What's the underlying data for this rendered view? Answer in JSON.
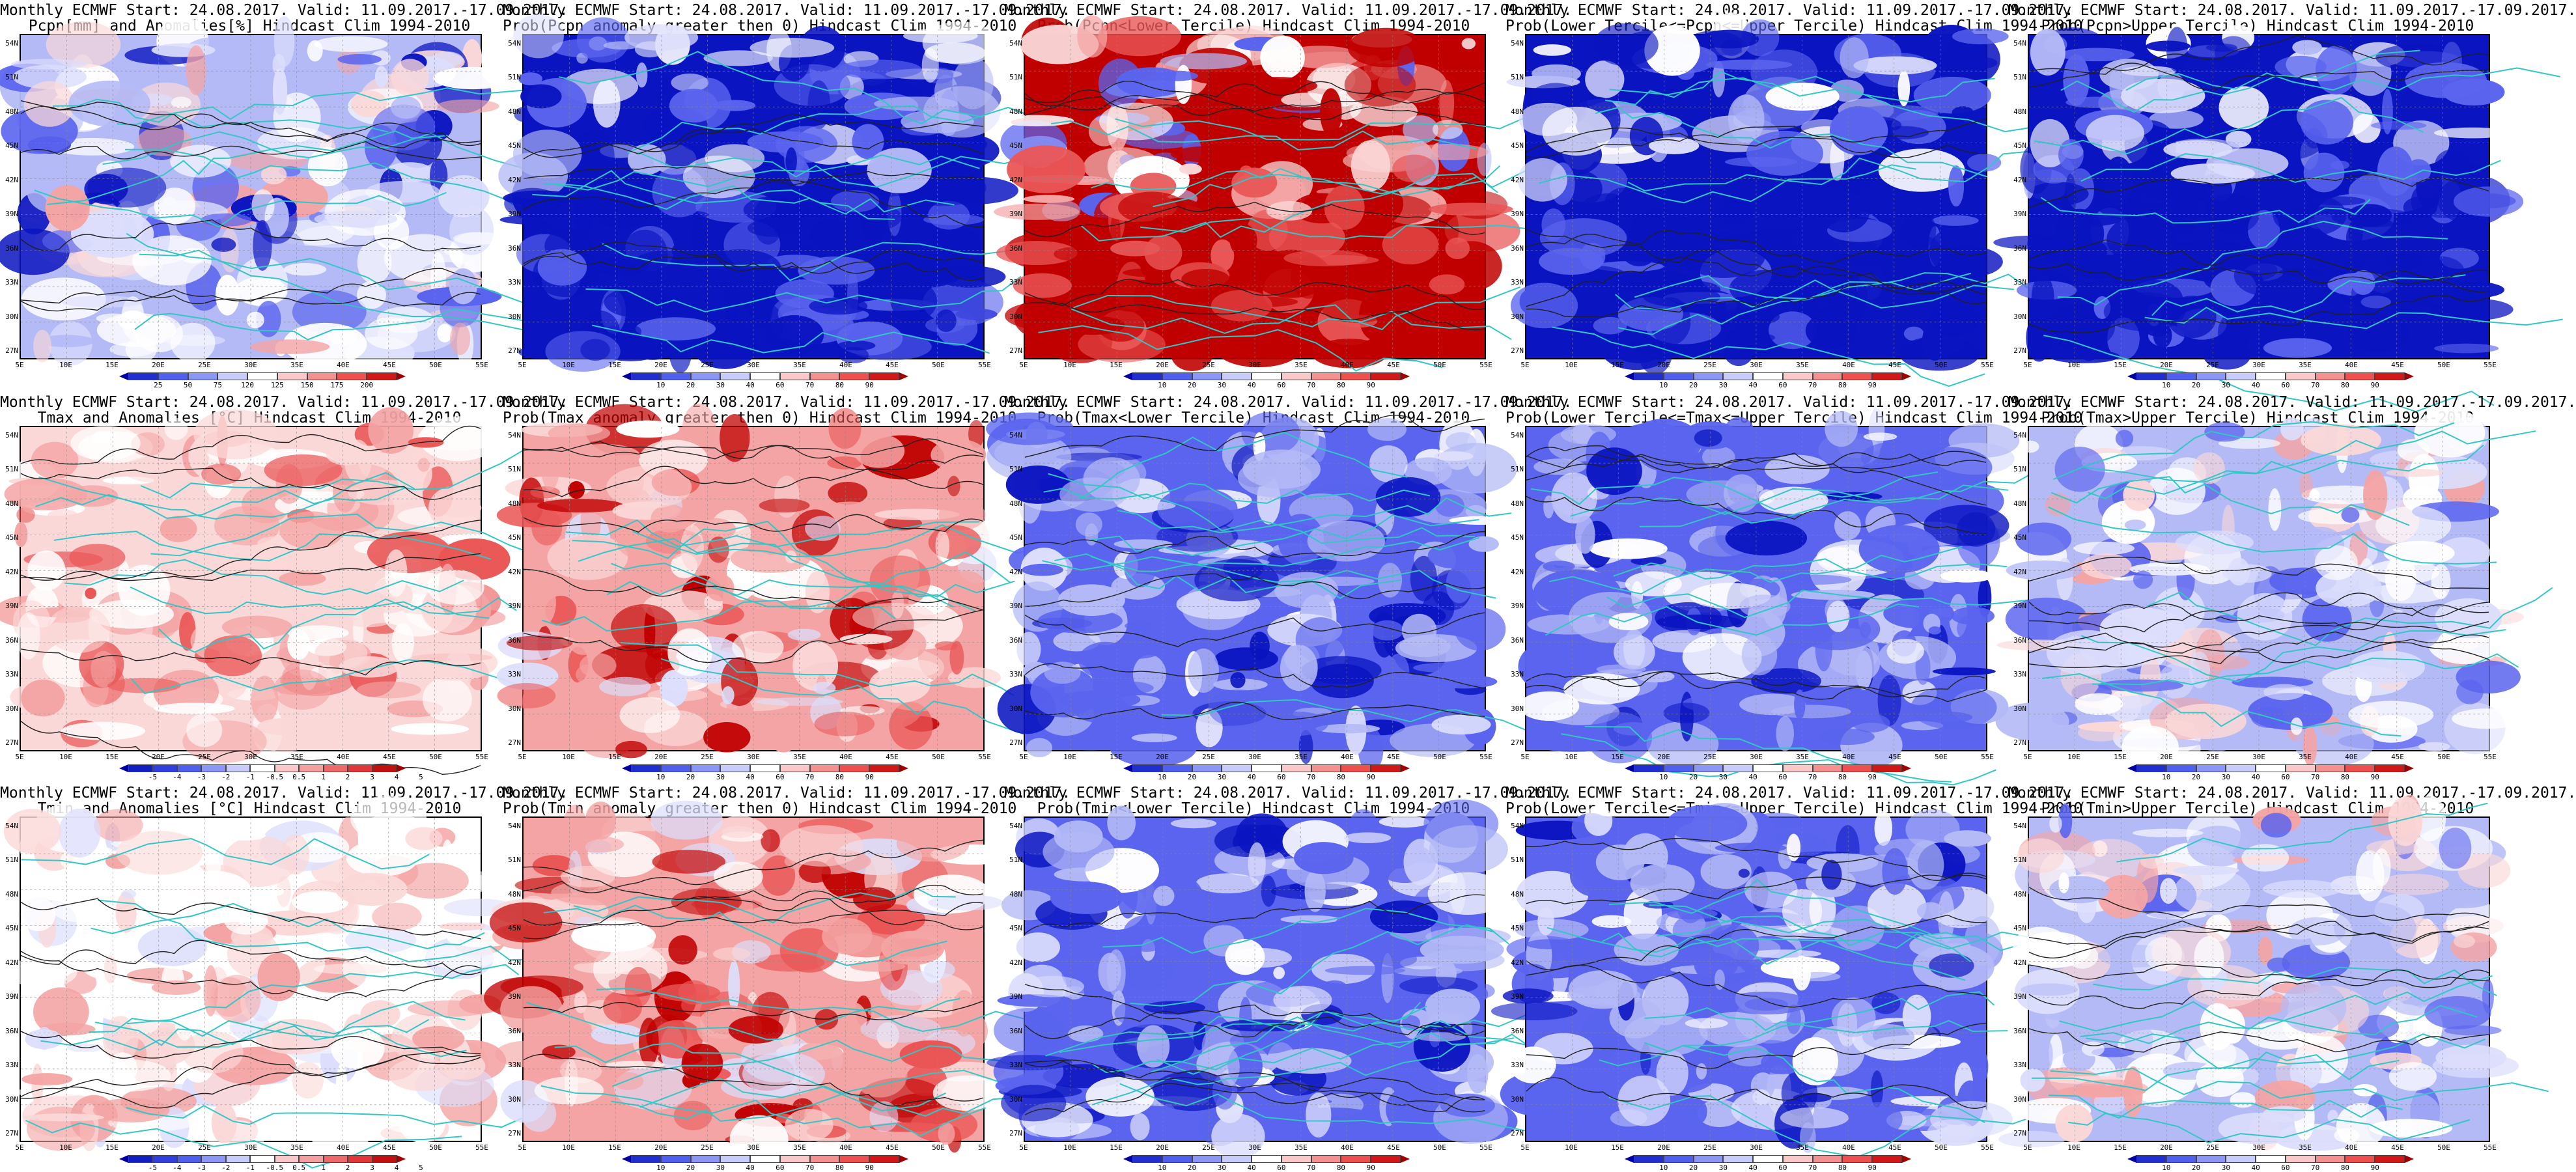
{
  "panels": [
    {
      "line1": "Monthly ECMWF Start: 24.08.2017. Valid: 11.09.2017.-17.09.2017.",
      "line2": "Pcpn[mm] and Anomalies[%]",
      "line2_suffix": " Hindcast Clim 1994-2010",
      "scheme": "pcpn_anom",
      "bar": "pct",
      "map": "pcpn_anom"
    },
    {
      "line1": "Monthly ECMWF Start: 24.08.2017. Valid: 11.09.2017.-17.09.2017.",
      "line2": "Prob(Pcpn anomaly greater then 0)",
      "line2_suffix": " Hindcast Clim 1994-2010",
      "scheme": "prob",
      "bar": "prob",
      "map": "blue_heavy"
    },
    {
      "line1": "Monthly ECMWF Start: 24.08.2017. Valid: 11.09.2017.-17.09.2017.",
      "line2": "Prob(Pcpn<Lower Tercile)",
      "line2_suffix": " Hindcast Clim 1994-2010",
      "scheme": "prob",
      "bar": "prob",
      "map": "red_south"
    },
    {
      "line1": "Monthly ECMWF Start: 24.08.2017. Valid: 11.09.2017.-17.09.2017.",
      "line2": "Prob(Lower Tercile<=Pcpn<=Upper Tercile)",
      "line2_suffix": " Hindcast Clim 1994-2010",
      "scheme": "prob",
      "bar": "prob",
      "map": "blue_heavy"
    },
    {
      "line1": "Monthly ECMWF Start: 24.08.2017. Valid: 11.09.2017.-17.09.2017.",
      "line2": "Prob(Pcpn>Upper Tercile)",
      "line2_suffix": " Hindcast Clim 1994-2010",
      "scheme": "prob",
      "bar": "prob",
      "map": "blue_heavy"
    },
    {
      "line1": "Monthly ECMWF Start: 24.08.2017. Valid: 11.09.2017.-17.09.2017.",
      "line2": "Tmax and Anomalies [°C]",
      "line2_suffix": " Hindcast Clim 1994-2010",
      "scheme": "temp",
      "bar": "temp",
      "map": "red_mild"
    },
    {
      "line1": "Monthly ECMWF Start: 24.08.2017. Valid: 11.09.2017.-17.09.2017.",
      "line2": "Prob(Tmax anomaly greater then 0)",
      "line2_suffix": " Hindcast Clim 1994-2010",
      "scheme": "prob",
      "bar": "prob",
      "map": "red_mid"
    },
    {
      "line1": "Monthly ECMWF Start: 24.08.2017. Valid: 11.09.2017.-17.09.2017.",
      "line2": "Prob(Tmax<Lower Tercile)",
      "line2_suffix": " Hindcast Clim 1994-2010",
      "scheme": "prob",
      "bar": "prob",
      "map": "blue_mid"
    },
    {
      "line1": "Monthly ECMWF Start: 24.08.2017. Valid: 11.09.2017.-17.09.2017.",
      "line2": "Prob(Lower Tercile<=Tmax<=Upper Tercile)",
      "line2_suffix": " Hindcast Clim 1994-2010",
      "scheme": "prob",
      "bar": "prob",
      "map": "blue_mid"
    },
    {
      "line1": "Monthly ECMWF Start: 24.08.2017. Valid: 11.09.2017.-17.09.2017.",
      "line2": "Prob(Tmax>Upper Tercile)",
      "line2_suffix": " Hindcast Clim 1994-2010",
      "scheme": "prob",
      "bar": "prob",
      "map": "mixed_light"
    },
    {
      "line1": "Monthly ECMWF Start: 24.08.2017. Valid: 11.09.2017.-17.09.2017.",
      "line2": "Tmin and Anomalies [°C]",
      "line2_suffix": " Hindcast Clim 1994-2010",
      "scheme": "temp",
      "bar": "temp",
      "map": "red_light"
    },
    {
      "line1": "Monthly ECMWF Start: 24.08.2017. Valid: 11.09.2017.-17.09.2017.",
      "line2": "Prob(Tmin anomaly greater then 0)",
      "line2_suffix": " Hindcast Clim 1994-2010",
      "scheme": "prob",
      "bar": "prob",
      "map": "red_mid"
    },
    {
      "line1": "Monthly ECMWF Start: 24.08.2017. Valid: 11.09.2017.-17.09.2017.",
      "line2": "Prob(Tmin<Lower Tercile)",
      "line2_suffix": " Hindcast Clim 1994-2010",
      "scheme": "prob",
      "bar": "prob",
      "map": "blue_mid"
    },
    {
      "line1": "Monthly ECMWF Start: 24.08.2017. Valid: 11.09.2017.-17.09.2017.",
      "line2": "Prob(Lower Tercile<=Tmin<=Upper Tercile)",
      "line2_suffix": " Hindcast Clim 1994-2010",
      "scheme": "prob",
      "bar": "prob",
      "map": "blue_mid"
    },
    {
      "line1": "Monthly ECMWF Start: 24.08.2017. Valid: 11.09.2017.-17.09.2017.",
      "line2": "Prob(Tmin>Upper Tercile)",
      "line2_suffix": " Hindcast Clim 1994-2010",
      "scheme": "prob",
      "bar": "prob",
      "map": "mixed_light"
    }
  ],
  "axes": {
    "lat_labels": [
      "54N",
      "51N",
      "48N",
      "45N",
      "42N",
      "39N",
      "36N",
      "33N",
      "30N",
      "27N"
    ],
    "lon_labels": [
      "5E",
      "10E",
      "15E",
      "20E",
      "25E",
      "30E",
      "35E",
      "40E",
      "45E",
      "50E",
      "55E"
    ]
  },
  "colorbars": {
    "pct": {
      "labels": [
        "25",
        "50",
        "75",
        "120",
        "125",
        "150",
        "175",
        "200"
      ],
      "colors": [
        "#0000a0",
        "#2030d0",
        "#5060ee",
        "#8c96f4",
        "#c8ccfa",
        "#ffffff",
        "#fac8c8",
        "#f49090",
        "#ee5050",
        "#d01818",
        "#a00000"
      ]
    },
    "prob": {
      "labels": [
        "10",
        "20",
        "30",
        "40",
        "60",
        "70",
        "80",
        "90"
      ],
      "colors": [
        "#0000a0",
        "#2030d0",
        "#5060ee",
        "#8c96f4",
        "#c8ccfa",
        "#ffffff",
        "#fac8c8",
        "#f49090",
        "#ee5050",
        "#d01818",
        "#a00000"
      ]
    },
    "temp": {
      "labels": [
        "-5",
        "-4",
        "-3",
        "-2",
        "-1",
        "-0.5",
        "0.5",
        "1",
        "2",
        "3",
        "4",
        "5"
      ],
      "colors": [
        "#0000a0",
        "#1020c0",
        "#3040dd",
        "#5060ee",
        "#8c96f4",
        "#c8ccfa",
        "#ffffff",
        "#fac8c8",
        "#f4a0a0",
        "#ee6a6a",
        "#e03838",
        "#c01010",
        "#a00000"
      ]
    }
  },
  "palette": {
    "deep_blue": "#0a14c0",
    "mid_blue": "#5a64ee",
    "light_blue": "#b4baf6",
    "pale_blue": "#dcdefc",
    "white": "#ffffff",
    "pale_red": "#fbd8d8",
    "light_red": "#f4a4a4",
    "mid_red": "#ea5656",
    "deep_red": "#c00000",
    "border_color": "#33c6c6",
    "contour_color": "#202020"
  }
}
